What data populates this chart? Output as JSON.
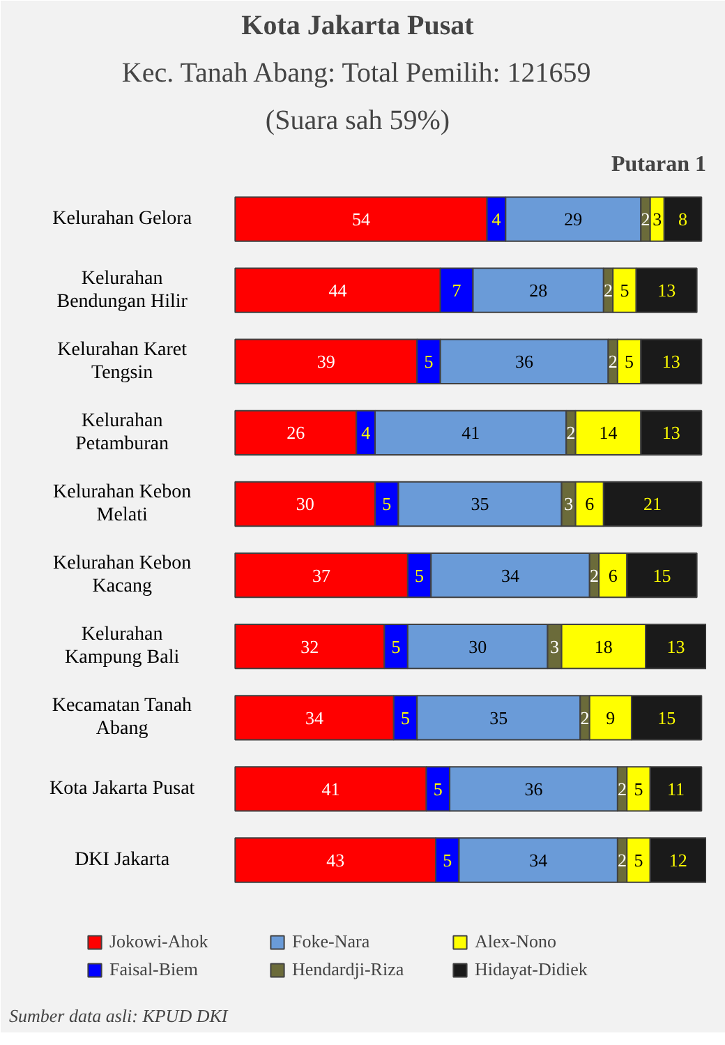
{
  "chart_data": {
    "type": "bar",
    "orientation": "horizontal",
    "stacked": true,
    "data_labels": true,
    "legend": "bottom",
    "grid": false,
    "tick_labels": "y",
    "title": "Kota Jakarta Pusat",
    "subtitle": "Kec. Tanah Abang: Total Pemilih: 121659",
    "annotations": [
      "(Suara sah 59%)",
      "Putaran 1",
      "Sumber data asli: KPUD DKI"
    ],
    "categories": [
      "Kelurahan Gelora",
      "Kelurahan Bendungan Hilir",
      "Kelurahan Karet Tengsin",
      "Kelurahan Petamburan",
      "Kelurahan Kebon Melati",
      "Kelurahan Kebon Kacang",
      "Kelurahan Kampung Bali",
      "Kecamatan Tanah Abang",
      "Kota Jakarta Pusat",
      "DKI Jakarta"
    ],
    "series": [
      {
        "name": "Jokowi-Ahok",
        "color": "#ff0000",
        "values": [
          54,
          44,
          39,
          26,
          30,
          37,
          32,
          34,
          41,
          43
        ]
      },
      {
        "name": "Faisal-Biem",
        "color": "#0000ff",
        "values": [
          4,
          7,
          5,
          4,
          5,
          5,
          5,
          5,
          5,
          5
        ]
      },
      {
        "name": "Foke-Nara",
        "color": "#6a9bd8",
        "values": [
          29,
          28,
          36,
          41,
          35,
          34,
          30,
          35,
          36,
          34
        ]
      },
      {
        "name": "Hendardji-Riza",
        "color": "#6b6b3a",
        "values": [
          2,
          2,
          2,
          2,
          3,
          2,
          3,
          2,
          2,
          2
        ]
      },
      {
        "name": "Alex-Nono",
        "color": "#ffff00",
        "values": [
          3,
          5,
          5,
          14,
          6,
          6,
          18,
          9,
          5,
          5
        ]
      },
      {
        "name": "Hidayat-Didiek",
        "color": "#1a1a1a",
        "values": [
          8,
          13,
          13,
          13,
          21,
          15,
          13,
          15,
          11,
          12
        ]
      }
    ]
  }
}
